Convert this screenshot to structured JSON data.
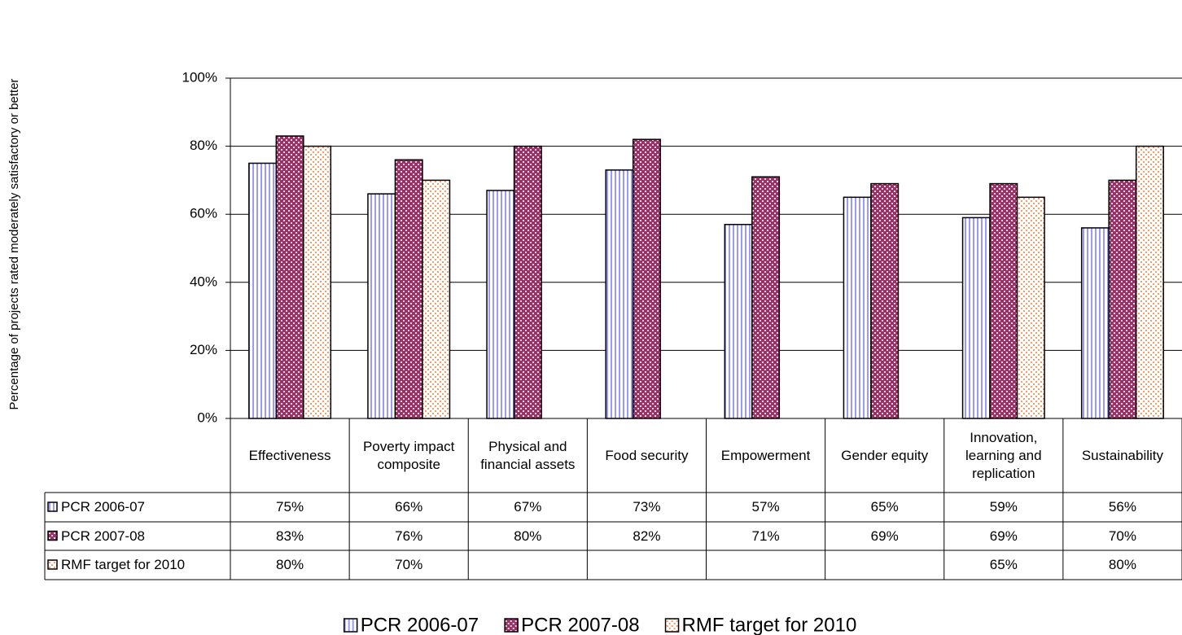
{
  "chart_data": {
    "type": "bar",
    "y_label": "Percentage of projects rated moderately satisfactory or better",
    "categories": [
      "Effectiveness",
      "Poverty impact composite",
      "Physical and financial assets",
      "Food security",
      "Empowerment",
      "Gender equity",
      "Innovation, learning and replication",
      "Sustainability"
    ],
    "series": [
      {
        "name": "PCR 2006-07",
        "color": "#9999ff",
        "values": [
          75,
          66,
          67,
          73,
          57,
          65,
          59,
          56
        ],
        "value_labels": [
          "75%",
          "66%",
          "67%",
          "73%",
          "57%",
          "65%",
          "59%",
          "56%"
        ]
      },
      {
        "name": "PCR 2007-08",
        "color": "#993366",
        "values": [
          83,
          76,
          80,
          82,
          71,
          69,
          69,
          70
        ],
        "value_labels": [
          "83%",
          "76%",
          "80%",
          "82%",
          "71%",
          "69%",
          "69%",
          "70%"
        ]
      },
      {
        "name": "RMF target for 2010",
        "color": "#ff9966",
        "values": [
          80,
          70,
          null,
          null,
          null,
          null,
          65,
          80
        ],
        "value_labels": [
          "80%",
          "70%",
          null,
          null,
          null,
          null,
          "65%",
          "80%"
        ]
      }
    ],
    "ylim": [
      0,
      100
    ],
    "yticks": [
      {
        "value": 0,
        "label": "0%"
      },
      {
        "value": 20,
        "label": "20%"
      },
      {
        "value": 40,
        "label": "40%"
      },
      {
        "value": 60,
        "label": "60%"
      },
      {
        "value": 80,
        "label": "80%"
      },
      {
        "value": 100,
        "label": "100%"
      }
    ],
    "grid": true,
    "legend": "bottom",
    "data_table": true
  }
}
